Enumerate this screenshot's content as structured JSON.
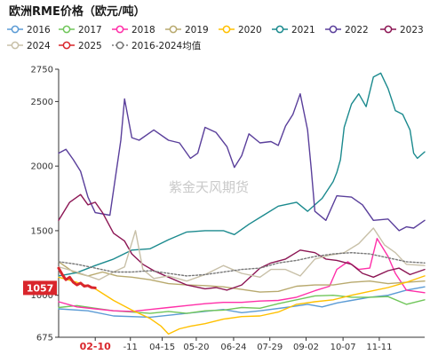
{
  "title": "欧洲RME价格（欧元/吨）",
  "watermark": "紫金天风期货",
  "chart_data": {
    "type": "line",
    "title": "欧洲RME价格（欧元/吨）",
    "y_ticks": [
      675,
      1000,
      1500,
      2000,
      2500,
      2750
    ],
    "ylim": [
      675,
      2750
    ],
    "x_ticks": [
      "02-10",
      "-11",
      "04-15",
      "05-20",
      "06-24",
      "07-29",
      "09-02",
      "10-07",
      "11-11"
    ],
    "x_tick_pos": [
      0.1,
      0.196,
      0.283,
      0.376,
      0.478,
      0.577,
      0.676,
      0.777,
      0.876
    ],
    "highlight_x_tick": "02-10",
    "callout": {
      "label": "1057",
      "value": 1057,
      "color": "#d9262c"
    },
    "legend_position": "top",
    "grid": false,
    "series": [
      {
        "name": "2016",
        "color": "#5b9bd5",
        "marker": "circle",
        "values": [
          [
            0,
            895
          ],
          [
            0.08,
            880
          ],
          [
            0.15,
            840
          ],
          [
            0.25,
            830
          ],
          [
            0.35,
            860
          ],
          [
            0.45,
            890
          ],
          [
            0.5,
            865
          ],
          [
            0.55,
            880
          ],
          [
            0.62,
            905
          ],
          [
            0.68,
            930
          ],
          [
            0.72,
            910
          ],
          [
            0.76,
            940
          ],
          [
            0.8,
            960
          ],
          [
            0.85,
            985
          ],
          [
            0.9,
            1000
          ],
          [
            0.95,
            1040
          ],
          [
            1,
            1065
          ]
        ]
      },
      {
        "name": "2017",
        "color": "#70c65a",
        "marker": "circle",
        "values": [
          [
            0,
            905
          ],
          [
            0.05,
            920
          ],
          [
            0.1,
            900
          ],
          [
            0.15,
            880
          ],
          [
            0.2,
            870
          ],
          [
            0.25,
            860
          ],
          [
            0.3,
            875
          ],
          [
            0.35,
            860
          ],
          [
            0.4,
            880
          ],
          [
            0.45,
            885
          ],
          [
            0.5,
            905
          ],
          [
            0.55,
            900
          ],
          [
            0.6,
            935
          ],
          [
            0.65,
            965
          ],
          [
            0.7,
            995
          ],
          [
            0.75,
            1000
          ],
          [
            0.8,
            985
          ],
          [
            0.85,
            985
          ],
          [
            0.9,
            990
          ],
          [
            0.95,
            930
          ],
          [
            1,
            965
          ]
        ]
      },
      {
        "name": "2018",
        "color": "#ff2fa8",
        "marker": "circle",
        "values": [
          [
            0,
            950
          ],
          [
            0.05,
            910
          ],
          [
            0.1,
            895
          ],
          [
            0.15,
            880
          ],
          [
            0.2,
            875
          ],
          [
            0.25,
            890
          ],
          [
            0.3,
            905
          ],
          [
            0.35,
            920
          ],
          [
            0.4,
            935
          ],
          [
            0.45,
            945
          ],
          [
            0.5,
            945
          ],
          [
            0.55,
            955
          ],
          [
            0.6,
            960
          ],
          [
            0.65,
            985
          ],
          [
            0.7,
            1035
          ],
          [
            0.74,
            1070
          ],
          [
            0.76,
            1200
          ],
          [
            0.79,
            1260
          ],
          [
            0.82,
            1200
          ],
          [
            0.85,
            1210
          ],
          [
            0.87,
            1440
          ],
          [
            0.9,
            1300
          ],
          [
            0.92,
            1170
          ],
          [
            0.95,
            1040
          ],
          [
            1,
            1020
          ]
        ]
      },
      {
        "name": "2019",
        "color": "#b8a96e",
        "marker": "circle",
        "values": [
          [
            0,
            1260
          ],
          [
            0.04,
            1180
          ],
          [
            0.08,
            1150
          ],
          [
            0.12,
            1180
          ],
          [
            0.16,
            1150
          ],
          [
            0.2,
            1140
          ],
          [
            0.25,
            1120
          ],
          [
            0.3,
            1090
          ],
          [
            0.35,
            1080
          ],
          [
            0.4,
            1075
          ],
          [
            0.45,
            1065
          ],
          [
            0.5,
            1045
          ],
          [
            0.55,
            1025
          ],
          [
            0.6,
            1030
          ],
          [
            0.65,
            1070
          ],
          [
            0.7,
            1080
          ],
          [
            0.75,
            1080
          ],
          [
            0.8,
            1100
          ],
          [
            0.85,
            1110
          ],
          [
            0.9,
            1090
          ],
          [
            0.95,
            1100
          ],
          [
            1,
            1110
          ]
        ]
      },
      {
        "name": "2020",
        "color": "#ffc000",
        "marker": "circle",
        "values": [
          [
            0,
            1140
          ],
          [
            0.05,
            1100
          ],
          [
            0.1,
            1050
          ],
          [
            0.15,
            960
          ],
          [
            0.2,
            885
          ],
          [
            0.25,
            820
          ],
          [
            0.28,
            760
          ],
          [
            0.3,
            700
          ],
          [
            0.33,
            740
          ],
          [
            0.36,
            760
          ],
          [
            0.4,
            780
          ],
          [
            0.45,
            815
          ],
          [
            0.5,
            835
          ],
          [
            0.55,
            840
          ],
          [
            0.6,
            870
          ],
          [
            0.65,
            930
          ],
          [
            0.7,
            950
          ],
          [
            0.75,
            965
          ],
          [
            0.8,
            1000
          ],
          [
            0.85,
            1030
          ],
          [
            0.9,
            1060
          ],
          [
            0.95,
            1100
          ],
          [
            1,
            1150
          ]
        ]
      },
      {
        "name": "2021",
        "color": "#1b8a8e",
        "marker": "circle",
        "values": [
          [
            0,
            1150
          ],
          [
            0.05,
            1175
          ],
          [
            0.1,
            1230
          ],
          [
            0.15,
            1280
          ],
          [
            0.2,
            1350
          ],
          [
            0.25,
            1360
          ],
          [
            0.3,
            1430
          ],
          [
            0.35,
            1490
          ],
          [
            0.4,
            1500
          ],
          [
            0.45,
            1500
          ],
          [
            0.48,
            1470
          ],
          [
            0.52,
            1550
          ],
          [
            0.56,
            1620
          ],
          [
            0.6,
            1690
          ],
          [
            0.65,
            1720
          ],
          [
            0.68,
            1650
          ],
          [
            0.72,
            1750
          ],
          [
            0.75,
            1880
          ],
          [
            0.76,
            1950
          ],
          [
            0.77,
            2050
          ],
          [
            0.78,
            2300
          ],
          [
            0.8,
            2480
          ],
          [
            0.82,
            2560
          ],
          [
            0.84,
            2460
          ],
          [
            0.86,
            2690
          ],
          [
            0.88,
            2720
          ],
          [
            0.9,
            2600
          ],
          [
            0.92,
            2430
          ],
          [
            0.94,
            2400
          ],
          [
            0.96,
            2280
          ],
          [
            0.97,
            2100
          ],
          [
            0.98,
            2060
          ],
          [
            1,
            2110
          ]
        ]
      },
      {
        "name": "2022",
        "color": "#5a3f9b",
        "marker": "circle",
        "values": [
          [
            0,
            2100
          ],
          [
            0.02,
            2130
          ],
          [
            0.04,
            2050
          ],
          [
            0.06,
            1960
          ],
          [
            0.08,
            1760
          ],
          [
            0.1,
            1640
          ],
          [
            0.14,
            1620
          ],
          [
            0.17,
            2200
          ],
          [
            0.18,
            2520
          ],
          [
            0.2,
            2220
          ],
          [
            0.22,
            2200
          ],
          [
            0.26,
            2280
          ],
          [
            0.3,
            2200
          ],
          [
            0.33,
            2180
          ],
          [
            0.36,
            2060
          ],
          [
            0.38,
            2100
          ],
          [
            0.4,
            2300
          ],
          [
            0.43,
            2260
          ],
          [
            0.46,
            2150
          ],
          [
            0.48,
            1990
          ],
          [
            0.5,
            2080
          ],
          [
            0.52,
            2250
          ],
          [
            0.55,
            2180
          ],
          [
            0.58,
            2190
          ],
          [
            0.6,
            2160
          ],
          [
            0.62,
            2310
          ],
          [
            0.64,
            2400
          ],
          [
            0.66,
            2560
          ],
          [
            0.68,
            2280
          ],
          [
            0.69,
            1980
          ],
          [
            0.7,
            1650
          ],
          [
            0.73,
            1580
          ],
          [
            0.76,
            1770
          ],
          [
            0.8,
            1760
          ],
          [
            0.83,
            1700
          ],
          [
            0.86,
            1580
          ],
          [
            0.9,
            1590
          ],
          [
            0.93,
            1500
          ],
          [
            0.95,
            1530
          ],
          [
            0.97,
            1520
          ],
          [
            0.99,
            1560
          ],
          [
            1,
            1580
          ]
        ]
      },
      {
        "name": "2023",
        "color": "#8c1654",
        "marker": "circle",
        "values": [
          [
            0,
            1580
          ],
          [
            0.03,
            1720
          ],
          [
            0.06,
            1780
          ],
          [
            0.08,
            1700
          ],
          [
            0.1,
            1720
          ],
          [
            0.12,
            1640
          ],
          [
            0.15,
            1480
          ],
          [
            0.18,
            1420
          ],
          [
            0.2,
            1320
          ],
          [
            0.23,
            1240
          ],
          [
            0.26,
            1190
          ],
          [
            0.3,
            1140
          ],
          [
            0.35,
            1080
          ],
          [
            0.4,
            1050
          ],
          [
            0.43,
            1060
          ],
          [
            0.46,
            1040
          ],
          [
            0.5,
            1080
          ],
          [
            0.55,
            1210
          ],
          [
            0.58,
            1250
          ],
          [
            0.62,
            1280
          ],
          [
            0.66,
            1350
          ],
          [
            0.7,
            1330
          ],
          [
            0.73,
            1280
          ],
          [
            0.76,
            1270
          ],
          [
            0.8,
            1240
          ],
          [
            0.83,
            1170
          ],
          [
            0.86,
            1140
          ],
          [
            0.9,
            1190
          ],
          [
            0.93,
            1210
          ],
          [
            0.96,
            1160
          ],
          [
            1,
            1200
          ]
        ]
      },
      {
        "name": "2024",
        "color": "#c8c0a8",
        "marker": "circle",
        "values": [
          [
            0,
            1220
          ],
          [
            0.05,
            1180
          ],
          [
            0.08,
            1150
          ],
          [
            0.11,
            1120
          ],
          [
            0.15,
            1180
          ],
          [
            0.18,
            1220
          ],
          [
            0.21,
            1500
          ],
          [
            0.23,
            1200
          ],
          [
            0.26,
            1130
          ],
          [
            0.3,
            1150
          ],
          [
            0.35,
            1110
          ],
          [
            0.4,
            1160
          ],
          [
            0.45,
            1230
          ],
          [
            0.5,
            1170
          ],
          [
            0.55,
            1140
          ],
          [
            0.58,
            1200
          ],
          [
            0.62,
            1200
          ],
          [
            0.66,
            1150
          ],
          [
            0.7,
            1280
          ],
          [
            0.74,
            1310
          ],
          [
            0.78,
            1330
          ],
          [
            0.82,
            1400
          ],
          [
            0.86,
            1520
          ],
          [
            0.89,
            1390
          ],
          [
            0.92,
            1330
          ],
          [
            0.95,
            1240
          ],
          [
            1,
            1230
          ]
        ]
      },
      {
        "name": "2025",
        "color": "#d9262c",
        "marker": "circle",
        "values": [
          [
            0,
            1210
          ],
          [
            0.01,
            1160
          ],
          [
            0.02,
            1120
          ],
          [
            0.03,
            1140
          ],
          [
            0.04,
            1100
          ],
          [
            0.05,
            1080
          ],
          [
            0.06,
            1095
          ],
          [
            0.07,
            1070
          ],
          [
            0.08,
            1075
          ],
          [
            0.09,
            1060
          ],
          [
            0.1,
            1057
          ]
        ]
      },
      {
        "name": "2016-2024均值",
        "color": "#777777",
        "marker": "circle",
        "dash": "2,2",
        "values": [
          [
            0,
            1260
          ],
          [
            0.05,
            1240
          ],
          [
            0.1,
            1210
          ],
          [
            0.15,
            1180
          ],
          [
            0.2,
            1180
          ],
          [
            0.25,
            1190
          ],
          [
            0.3,
            1170
          ],
          [
            0.35,
            1150
          ],
          [
            0.4,
            1160
          ],
          [
            0.45,
            1180
          ],
          [
            0.5,
            1200
          ],
          [
            0.55,
            1210
          ],
          [
            0.6,
            1250
          ],
          [
            0.65,
            1270
          ],
          [
            0.7,
            1300
          ],
          [
            0.75,
            1320
          ],
          [
            0.8,
            1330
          ],
          [
            0.85,
            1320
          ],
          [
            0.9,
            1290
          ],
          [
            0.95,
            1260
          ],
          [
            1,
            1250
          ]
        ]
      }
    ]
  }
}
